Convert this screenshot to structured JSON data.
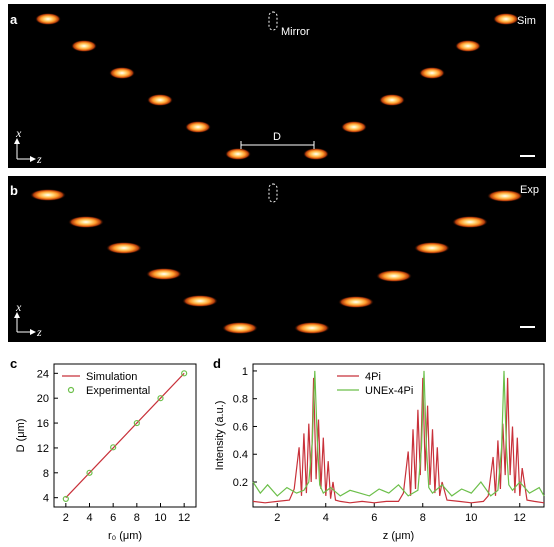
{
  "panels": {
    "a": {
      "label": "a",
      "tag": "Sim",
      "mirror_label": "Mirror",
      "distance_label": "D",
      "axis_x": "x",
      "axis_z": "z"
    },
    "b": {
      "label": "b",
      "tag": "Exp",
      "axis_x": "x",
      "axis_z": "z"
    },
    "c": {
      "label": "c"
    },
    "d": {
      "label": "d"
    }
  },
  "chart_data": [
    {
      "panel": "c",
      "type": "line",
      "xlabel": "r₀ (μm)",
      "ylabel": "D (μm)",
      "xlim": [
        1,
        13
      ],
      "ylim": [
        2.5,
        25.5
      ],
      "xticks": [
        2,
        4,
        6,
        8,
        10,
        12
      ],
      "yticks": [
        4,
        8,
        12,
        16,
        20,
        24
      ],
      "series": [
        {
          "name": "Simulation",
          "style": "line",
          "color": "#c8313a",
          "x": [
            2,
            4,
            6,
            8,
            10,
            12
          ],
          "y": [
            4,
            8,
            12,
            16,
            20,
            24
          ]
        },
        {
          "name": "Experimental",
          "style": "marker",
          "color": "#6cbf4a",
          "x": [
            2,
            4,
            6,
            8,
            10,
            12
          ],
          "y": [
            3.8,
            8,
            12.1,
            16,
            20,
            24
          ]
        }
      ],
      "legend": "top-left"
    },
    {
      "panel": "d",
      "type": "line",
      "xlabel": "z (μm)",
      "ylabel": "Intensity (a.u.)",
      "xlim": [
        1,
        13
      ],
      "ylim": [
        0.02,
        1.05
      ],
      "xticks": [
        2,
        4,
        6,
        8,
        10,
        12
      ],
      "yticks": [
        0.2,
        0.4,
        0.6,
        0.8,
        1
      ],
      "series": [
        {
          "name": "4Pi",
          "color": "#c8313a",
          "x": [
            1.0,
            1.5,
            2.0,
            2.5,
            2.7,
            2.9,
            3.0,
            3.1,
            3.2,
            3.3,
            3.4,
            3.5,
            3.6,
            3.7,
            3.8,
            3.9,
            4.0,
            4.1,
            4.2,
            4.3,
            4.4,
            4.6,
            5.0,
            5.5,
            6.0,
            6.5,
            7.0,
            7.2,
            7.4,
            7.5,
            7.6,
            7.7,
            7.8,
            7.9,
            8.0,
            8.1,
            8.2,
            8.3,
            8.4,
            8.5,
            8.6,
            8.7,
            8.8,
            9.0,
            9.5,
            10.0,
            10.5,
            10.7,
            10.9,
            11.0,
            11.1,
            11.2,
            11.3,
            11.4,
            11.5,
            11.6,
            11.7,
            11.8,
            11.9,
            12.0,
            12.1,
            12.3,
            12.6,
            13.0
          ],
          "y": [
            0.06,
            0.05,
            0.06,
            0.07,
            0.15,
            0.45,
            0.1,
            0.55,
            0.12,
            0.62,
            0.2,
            0.95,
            0.22,
            0.65,
            0.15,
            0.52,
            0.1,
            0.35,
            0.08,
            0.2,
            0.07,
            0.06,
            0.05,
            0.06,
            0.05,
            0.06,
            0.06,
            0.12,
            0.42,
            0.1,
            0.58,
            0.15,
            0.72,
            0.25,
            0.95,
            0.28,
            0.75,
            0.18,
            0.58,
            0.12,
            0.45,
            0.1,
            0.2,
            0.07,
            0.06,
            0.05,
            0.06,
            0.1,
            0.38,
            0.1,
            0.5,
            0.15,
            0.62,
            0.25,
            0.95,
            0.25,
            0.6,
            0.12,
            0.52,
            0.1,
            0.3,
            0.07,
            0.06,
            0.05
          ]
        },
        {
          "name": "UNEx-4Pi",
          "color": "#6cbf4a",
          "x": [
            1.0,
            1.3,
            1.6,
            2.0,
            2.4,
            2.8,
            3.1,
            3.3,
            3.45,
            3.55,
            3.65,
            3.75,
            3.9,
            4.2,
            4.6,
            5.0,
            5.4,
            5.8,
            6.2,
            6.6,
            7.0,
            7.4,
            7.8,
            7.95,
            8.05,
            8.15,
            8.25,
            8.4,
            8.8,
            9.2,
            9.6,
            10.0,
            10.4,
            10.8,
            11.1,
            11.25,
            11.35,
            11.45,
            11.55,
            11.7,
            12.0,
            12.4,
            12.8,
            13.0
          ],
          "y": [
            0.2,
            0.12,
            0.18,
            0.1,
            0.16,
            0.12,
            0.14,
            0.2,
            0.5,
            1.0,
            0.5,
            0.18,
            0.12,
            0.16,
            0.1,
            0.14,
            0.12,
            0.1,
            0.15,
            0.12,
            0.18,
            0.1,
            0.14,
            0.45,
            1.0,
            0.45,
            0.16,
            0.12,
            0.18,
            0.1,
            0.15,
            0.12,
            0.2,
            0.1,
            0.14,
            0.45,
            1.0,
            0.45,
            0.18,
            0.14,
            0.2,
            0.12,
            0.16,
            0.1
          ]
        }
      ],
      "legend": "top-center"
    }
  ]
}
